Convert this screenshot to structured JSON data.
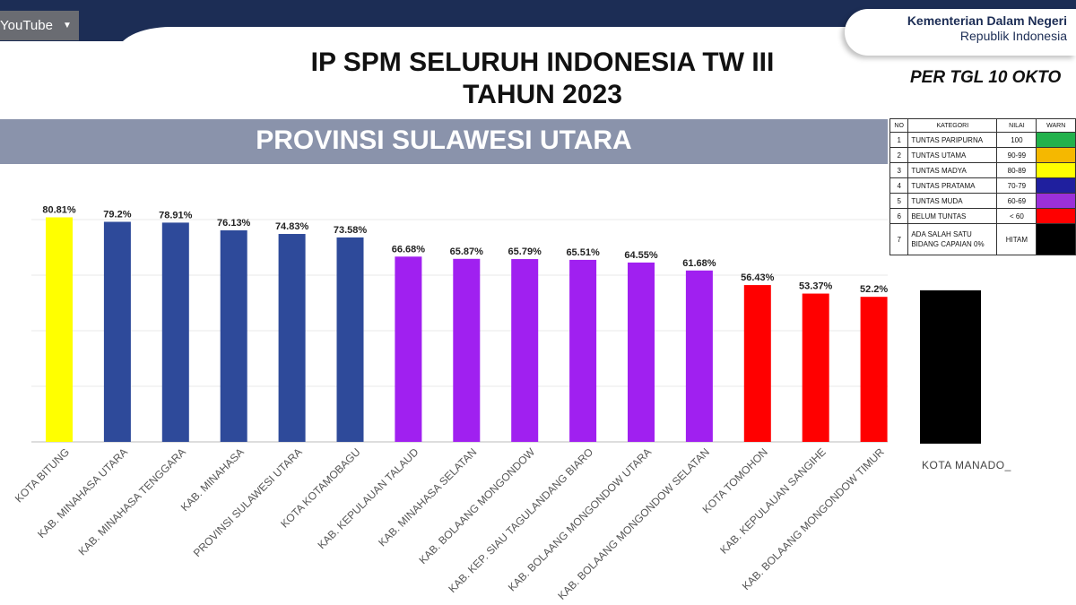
{
  "header": {
    "youtube_label": "YouTube",
    "youtube_caret": "▼",
    "ministry_line1": "Kementerian Dalam Negeri",
    "ministry_line2": "Republik Indonesia",
    "title_line1": "IP SPM SELURUH INDONESIA TW III",
    "title_line2": "TAHUN 2023",
    "date_note": "PER TGL 10 OKTO",
    "banner": "PROVINSI SULAWESI UTARA"
  },
  "legend": {
    "headers": [
      "NO",
      "KATEGORI",
      "NILAI",
      "WARN"
    ],
    "rows": [
      {
        "no": "1",
        "kategori": "TUNTAS PARIPURNA",
        "nilai": "100",
        "color": "#22b14c"
      },
      {
        "no": "2",
        "kategori": "TUNTAS UTAMA",
        "nilai": "90-99",
        "color": "#f5b800"
      },
      {
        "no": "3",
        "kategori": "TUNTAS MADYA",
        "nilai": "80-89",
        "color": "#ffff00"
      },
      {
        "no": "4",
        "kategori": "TUNTAS PRATAMA",
        "nilai": "70-79",
        "color": "#1f1f9e"
      },
      {
        "no": "5",
        "kategori": "TUNTAS MUDA",
        "nilai": "60-69",
        "color": "#9b30d9"
      },
      {
        "no": "6",
        "kategori": "BELUM TUNTAS",
        "nilai": "< 60",
        "color": "#ff0000"
      },
      {
        "no": "7",
        "kategori": "ADA SALAH SATU BIDANG CAPAIAN 0%",
        "nilai": "HITAM",
        "color": "#000000"
      }
    ]
  },
  "chart_data": {
    "type": "bar",
    "title": "PROVINSI SULAWESI UTARA",
    "categories": [
      "KOTA BITUNG",
      "KAB. MINAHASA UTARA",
      "KAB. MINAHASA TENGGARA",
      "KAB. MINAHASA",
      "PROVINSI SULAWESI UTARA",
      "KOTA KOTAMOBAGU",
      "KAB. KEPULAUAN TALAUD",
      "KAB. MINAHASA SELATAN",
      "KAB. BOLAANG MONGONDOW",
      "KAB. KEP. SIAU TAGULANDANG BIARO",
      "KAB. BOLAANG MONGONDOW UTARA",
      "KAB. BOLAANG MONGONDOW SELATAN",
      "KOTA TOMOHON",
      "KAB. KEPULAUAN SANGIHE",
      "KAB. BOLAANG MONGONDOW TIMUR"
    ],
    "values": [
      80.81,
      79.2,
      78.91,
      76.13,
      74.83,
      73.58,
      66.68,
      65.87,
      65.79,
      65.51,
      64.55,
      61.68,
      56.43,
      53.37,
      52.2
    ],
    "labels": [
      "80.81%",
      "79.2%",
      "78.91%",
      "76.13%",
      "74.83%",
      "73.58%",
      "66.68%",
      "65.87%",
      "65.79%",
      "65.51%",
      "64.55%",
      "61.68%",
      "56.43%",
      "53.37%",
      "52.2%"
    ],
    "colors": [
      "#ffff00",
      "#2e4a9a",
      "#2e4a9a",
      "#2e4a9a",
      "#2e4a9a",
      "#2e4a9a",
      "#a020f0",
      "#a020f0",
      "#a020f0",
      "#a020f0",
      "#a020f0",
      "#a020f0",
      "#ff0000",
      "#ff0000",
      "#ff0000"
    ],
    "ylim": [
      0,
      100
    ],
    "grid": true,
    "extra_bar": {
      "category": "KOTA MANADO_",
      "value": 55.2,
      "color": "#000000"
    }
  }
}
